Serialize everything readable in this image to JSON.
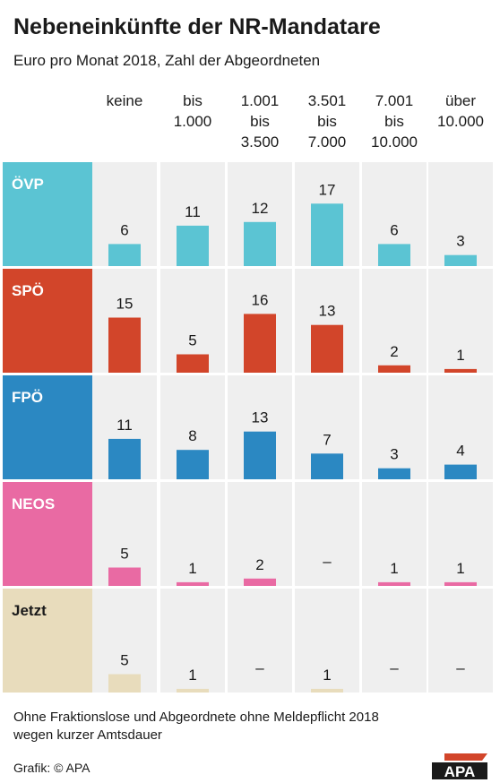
{
  "header": {
    "title": "Nebeneinkünfte der NR-Mandatare",
    "subtitle": "Euro pro Monat 2018, Zahl der Abgeordneten"
  },
  "chart_data": {
    "type": "bar",
    "categories": [
      "keine",
      "bis\n1.000",
      "1.001\nbis\n3.500",
      "3.501\nbis\n7.000",
      "7.001\nbis\n10.000",
      "über\n10.000"
    ],
    "series": [
      {
        "name": "ÖVP",
        "color": "#5bc4d3",
        "values": [
          6,
          11,
          12,
          17,
          6,
          3
        ]
      },
      {
        "name": "SPÖ",
        "color": "#d2452a",
        "values": [
          15,
          5,
          16,
          13,
          2,
          1
        ]
      },
      {
        "name": "FPÖ",
        "color": "#2b88c2",
        "values": [
          11,
          8,
          13,
          7,
          3,
          4
        ]
      },
      {
        "name": "NEOS",
        "color": "#e96aa3",
        "values": [
          5,
          1,
          2,
          null,
          1,
          1
        ]
      },
      {
        "name": "Jetzt",
        "color": "#e8dcbc",
        "values": [
          5,
          1,
          null,
          1,
          null,
          null
        ]
      }
    ],
    "missing_label": "–",
    "ylim": [
      0,
      17
    ]
  },
  "footer": {
    "note": "Ohne Fraktionslose und Abgeordnete ohne Meldepflicht 2018\nwegen kurzer Amtsdauer",
    "credit": "Grafik: © APA",
    "logo_text": "APA"
  }
}
